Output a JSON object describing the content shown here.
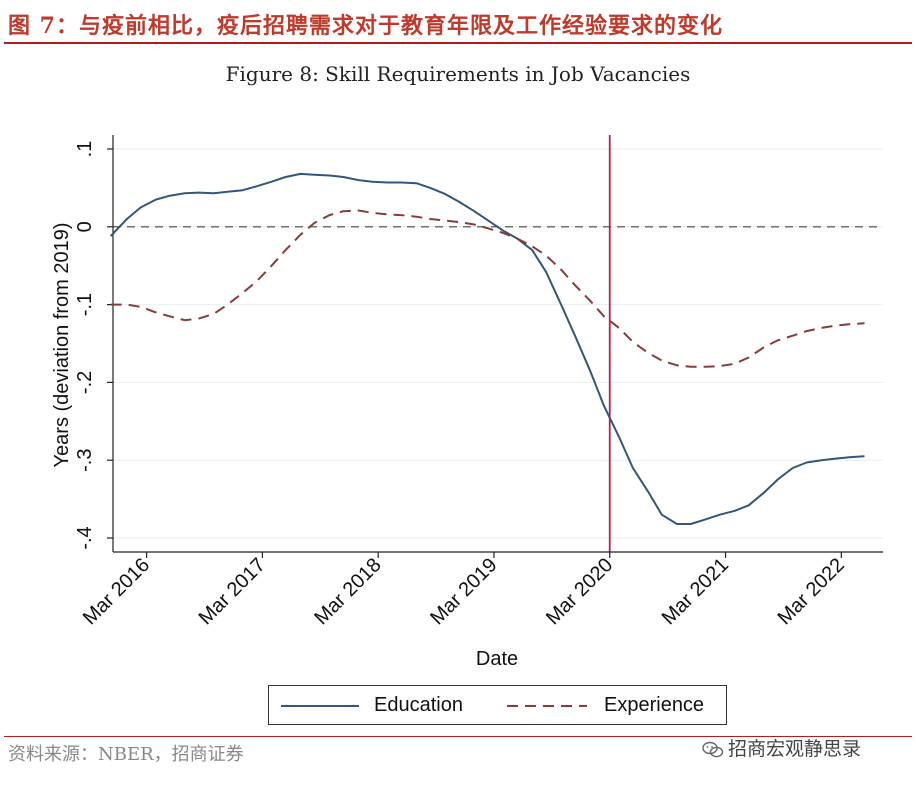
{
  "header": {
    "title": "图 7：与疫前相比，疫后招聘需求对于教育年限及工作经验要求的变化"
  },
  "figure_caption": "Figure 8: Skill Requirements in Job Vacancies",
  "footer": {
    "source": "资料来源：NBER，招商证券",
    "watermark": "招商宏观静思录"
  },
  "colors": {
    "education": "#34567a",
    "experience": "#8b3a3a",
    "vline": "#c21f45",
    "header": "#c0392b"
  },
  "icons": {
    "watermark_icon": "wechat-icon"
  },
  "chart_data": {
    "type": "line",
    "title": "Figure 8: Skill Requirements in Job Vacancies",
    "xlabel": "Date",
    "ylabel": "Years (deviation from 2019)",
    "x_tick_labels": [
      "Mar 2016",
      "Mar 2017",
      "Mar 2018",
      "Mar 2019",
      "Mar 2020",
      "Mar 2021",
      "Mar 2022"
    ],
    "x_tick_values": [
      2016.17,
      2017.17,
      2018.17,
      2019.17,
      2020.17,
      2021.17,
      2022.17
    ],
    "y_tick_labels": [
      ".1",
      "0",
      "-.1",
      "-.2",
      "-.3",
      "-.4"
    ],
    "y_tick_values": [
      0.1,
      0,
      -0.1,
      -0.2,
      -0.3,
      -0.4
    ],
    "xlim": [
      2015.88,
      2022.53
    ],
    "ylim": [
      -0.418,
      0.118
    ],
    "reference_lines": {
      "horizontal_y": 0,
      "vertical_x": 2020.17
    },
    "grid": true,
    "legend_position": "bottom",
    "series": [
      {
        "name": "Education",
        "style": "solid",
        "x": [
          2015.86,
          2016.0,
          2016.12,
          2016.25,
          2016.37,
          2016.5,
          2016.62,
          2016.75,
          2016.87,
          2017.0,
          2017.12,
          2017.25,
          2017.37,
          2017.5,
          2017.62,
          2017.75,
          2017.87,
          2018.0,
          2018.12,
          2018.25,
          2018.37,
          2018.5,
          2018.62,
          2018.75,
          2018.87,
          2019.0,
          2019.12,
          2019.25,
          2019.37,
          2019.5,
          2019.62,
          2019.75,
          2019.87,
          2020.0,
          2020.12,
          2020.25,
          2020.37,
          2020.5,
          2020.62,
          2020.75,
          2020.87,
          2021.0,
          2021.12,
          2021.25,
          2021.37,
          2021.5,
          2021.62,
          2021.75,
          2021.87,
          2022.0,
          2022.12,
          2022.25,
          2022.37
        ],
        "y": [
          -0.012,
          0.01,
          0.025,
          0.035,
          0.04,
          0.043,
          0.044,
          0.043,
          0.045,
          0.047,
          0.052,
          0.058,
          0.064,
          0.068,
          0.067,
          0.066,
          0.064,
          0.06,
          0.058,
          0.057,
          0.057,
          0.056,
          0.05,
          0.042,
          0.032,
          0.02,
          0.008,
          -0.005,
          -0.015,
          -0.03,
          -0.058,
          -0.1,
          -0.14,
          -0.185,
          -0.23,
          -0.27,
          -0.31,
          -0.34,
          -0.37,
          -0.382,
          -0.382,
          -0.376,
          -0.37,
          -0.365,
          -0.358,
          -0.342,
          -0.325,
          -0.31,
          -0.303,
          -0.3,
          -0.298,
          -0.296,
          -0.295
        ]
      },
      {
        "name": "Experience",
        "style": "dashed",
        "x": [
          2015.86,
          2016.0,
          2016.12,
          2016.25,
          2016.37,
          2016.5,
          2016.62,
          2016.75,
          2016.87,
          2017.0,
          2017.12,
          2017.25,
          2017.37,
          2017.5,
          2017.62,
          2017.75,
          2017.87,
          2018.0,
          2018.12,
          2018.25,
          2018.37,
          2018.5,
          2018.62,
          2018.75,
          2018.87,
          2019.0,
          2019.12,
          2019.25,
          2019.37,
          2019.5,
          2019.62,
          2019.75,
          2019.87,
          2020.0,
          2020.12,
          2020.25,
          2020.37,
          2020.5,
          2020.62,
          2020.75,
          2020.87,
          2021.0,
          2021.12,
          2021.25,
          2021.37,
          2021.5,
          2021.62,
          2021.75,
          2021.87,
          2022.0,
          2022.12,
          2022.25,
          2022.37
        ],
        "y": [
          -0.1,
          -0.1,
          -0.103,
          -0.11,
          -0.115,
          -0.12,
          -0.118,
          -0.112,
          -0.1,
          -0.085,
          -0.07,
          -0.05,
          -0.03,
          -0.01,
          0.005,
          0.015,
          0.02,
          0.021,
          0.018,
          0.016,
          0.015,
          0.013,
          0.01,
          0.008,
          0.006,
          0.003,
          -0.002,
          -0.008,
          -0.015,
          -0.025,
          -0.037,
          -0.055,
          -0.075,
          -0.095,
          -0.115,
          -0.13,
          -0.148,
          -0.162,
          -0.172,
          -0.178,
          -0.18,
          -0.18,
          -0.179,
          -0.176,
          -0.168,
          -0.155,
          -0.146,
          -0.14,
          -0.134,
          -0.13,
          -0.127,
          -0.125,
          -0.124
        ]
      }
    ]
  }
}
